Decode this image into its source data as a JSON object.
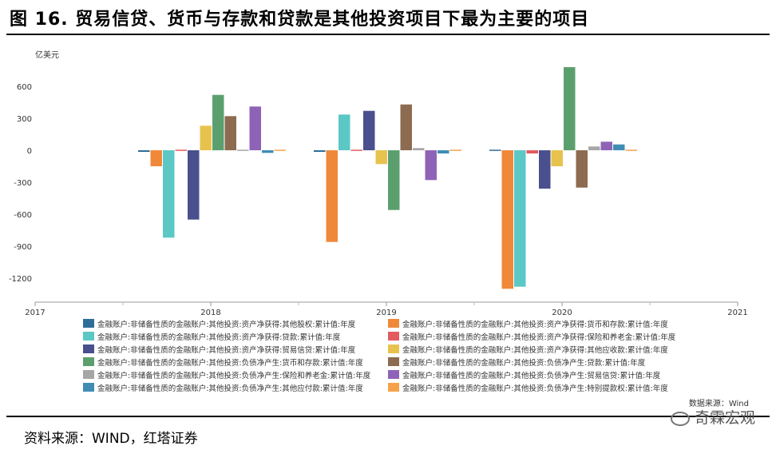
{
  "page": {
    "title": "图 16. 贸易信贷、货币与存款和贷款是其他投资项目下最为主要的项目",
    "source": "资料来源：WIND，红塔证券",
    "watermark": "奇霖宏观"
  },
  "chart_data": {
    "type": "bar",
    "title": "",
    "ylabel": "亿美元",
    "source_note": "数据来源：Wind",
    "ylim": [
      -1400,
      800
    ],
    "yticks": [
      600,
      300,
      0,
      -300,
      -600,
      -900,
      -1200
    ],
    "x_axis_ticks": [
      "2017",
      "2018",
      "2019",
      "2020",
      "2021"
    ],
    "categories": [
      "2018",
      "2019",
      "2020"
    ],
    "series": [
      {
        "name": "金融账户:非储备性质的金融账户:其他投资:资产净获得:其他股权:累计值:年度",
        "color": "#2E6D99",
        "values": [
          -15,
          -15,
          -5
        ]
      },
      {
        "name": "金融账户:非储备性质的金融账户:其他投资:资产净获得:货币和存款:累计值:年度",
        "color": "#F0883A",
        "values": [
          -150,
          -860,
          -1300
        ]
      },
      {
        "name": "金融账户:非储备性质的金融账户:其他投资:资产净获得:贷款:累计值:年度",
        "color": "#5BC8C6",
        "values": [
          -820,
          335,
          -1280
        ]
      },
      {
        "name": "金融账户:非储备性质的金融账户:其他投资:资产净获得:保险和养老金:累计值:年度",
        "color": "#E35A5F",
        "values": [
          0,
          -10,
          -30
        ]
      },
      {
        "name": "金融账户:非储备性质的金融账户:其他投资:资产净获得:贸易信贷:累计值:年度",
        "color": "#4A4F8E",
        "values": [
          -650,
          370,
          -360
        ]
      },
      {
        "name": "金融账户:非储备性质的金融账户:其他投资:资产净获得:其他应收款:累计值:年度",
        "color": "#E7C34E",
        "values": [
          230,
          -130,
          -150
        ]
      },
      {
        "name": "金融账户:非储备性质的金融账户:其他投资:负债净产生:货币和存款:累计值:年度",
        "color": "#5C9F6F",
        "values": [
          520,
          -560,
          780
        ]
      },
      {
        "name": "金融账户:非储备性质的金融账户:其他投资:负债净产生:贷款:累计值:年度",
        "color": "#8D6B50",
        "values": [
          320,
          430,
          -350
        ]
      },
      {
        "name": "金融账户:非储备性质的金融账户:其他投资:负债净产生:保险和养老金:累计值:年度",
        "color": "#A6A6A6",
        "values": [
          5,
          20,
          35
        ]
      },
      {
        "name": "金融账户:非储备性质的金融账户:其他投资:负债净产生:贸易信贷:累计值:年度",
        "color": "#8E63B7",
        "values": [
          410,
          -280,
          80
        ]
      },
      {
        "name": "金融账户:非储备性质的金融账户:其他投资:负债净产生:其他应付款:累计值:年度",
        "color": "#3F8DB5",
        "values": [
          -25,
          -30,
          55
        ]
      },
      {
        "name": "金融账户:非储备性质的金融账户:其他投资:负债净产生:特别提款权:累计值:年度",
        "color": "#F6A24A",
        "values": [
          0,
          0,
          3
        ]
      }
    ]
  }
}
